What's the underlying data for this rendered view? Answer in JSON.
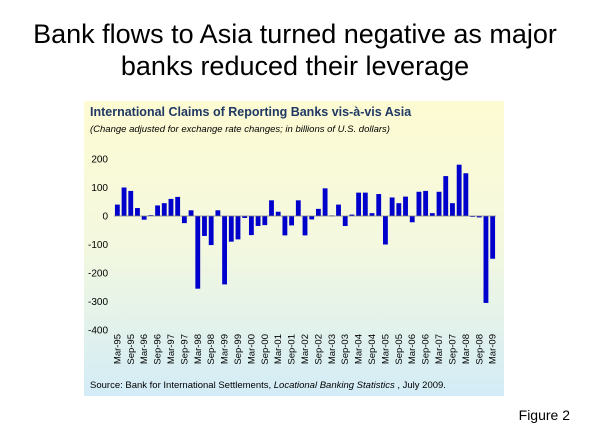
{
  "slide": {
    "title_line1": "Bank flows to Asia turned negative as major",
    "title_line2": "banks reduced their leverage",
    "figure_label": "Figure 2"
  },
  "chart_data": {
    "type": "bar",
    "title": "International Claims of Reporting Banks vis-à-vis Asia",
    "subtitle": "(Change adjusted for exchange rate changes; in billions of U.S. dollars)",
    "source_prefix": "Source: Bank for International Settlements, ",
    "source_italic": "Locational Banking Statistics",
    "source_suffix": " , July 2009.",
    "ylim": [
      -400,
      200
    ],
    "yticks": [
      200,
      100,
      0,
      -100,
      -200,
      -300,
      -400
    ],
    "grid": false,
    "bar_color": "#0000cc",
    "categories": [
      "Mar-95",
      "Jun-95",
      "Sep-95",
      "Dec-95",
      "Mar-96",
      "Jun-96",
      "Sep-96",
      "Dec-96",
      "Mar-97",
      "Jun-97",
      "Sep-97",
      "Dec-97",
      "Mar-98",
      "Jun-98",
      "Sep-98",
      "Dec-98",
      "Mar-99",
      "Jun-99",
      "Sep-99",
      "Dec-99",
      "Mar-00",
      "Jun-00",
      "Sep-00",
      "Dec-00",
      "Mar-01",
      "Jun-01",
      "Sep-01",
      "Dec-01",
      "Mar-02",
      "Jun-02",
      "Sep-02",
      "Dec-02",
      "Mar-03",
      "Jun-03",
      "Sep-03",
      "Dec-03",
      "Mar-04",
      "Jun-04",
      "Sep-04",
      "Dec-04",
      "Mar-05",
      "Jun-05",
      "Sep-05",
      "Dec-05",
      "Mar-06",
      "Jun-06",
      "Sep-06",
      "Dec-06",
      "Mar-07",
      "Jun-07",
      "Sep-07",
      "Dec-07",
      "Mar-08",
      "Jun-08",
      "Sep-08",
      "Dec-08",
      "Mar-09"
    ],
    "x_tick_labels": [
      "Mar-95",
      "Sep-95",
      "Mar-96",
      "Sep-96",
      "Mar-97",
      "Sep-97",
      "Mar-98",
      "Sep-98",
      "Mar-99",
      "Sep-99",
      "Mar-00",
      "Sep-00",
      "Mar-01",
      "Sep-01",
      "Mar-02",
      "Sep-02",
      "Mar-03",
      "Sep-03",
      "Mar-04",
      "Sep-04",
      "Mar-05",
      "Sep-05",
      "Mar-06",
      "Sep-06",
      "Mar-07",
      "Sep-07",
      "Mar-08",
      "Sep-08",
      "Mar-09"
    ],
    "values": [
      40,
      100,
      88,
      28,
      -13,
      3,
      37,
      45,
      60,
      67,
      -25,
      20,
      -255,
      -70,
      -102,
      20,
      -240,
      -90,
      -82,
      -7,
      -67,
      -35,
      -32,
      55,
      15,
      -68,
      -33,
      55,
      -68,
      -12,
      25,
      97,
      2,
      40,
      -35,
      5,
      82,
      82,
      10,
      77,
      -100,
      65,
      45,
      68,
      -22,
      85,
      88,
      10,
      85,
      140,
      45,
      180,
      150,
      -3,
      -5,
      -305,
      -150
    ]
  }
}
